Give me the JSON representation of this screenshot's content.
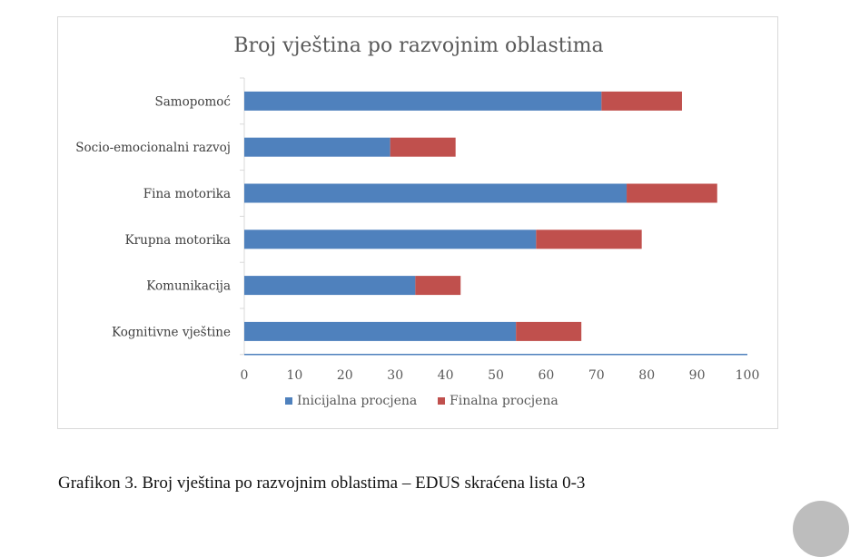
{
  "chart_data": {
    "type": "bar",
    "orientation": "horizontal",
    "stacked": true,
    "title": "Broj vještina po razvojnim oblastima",
    "categories": [
      "Samopomoć",
      "Socio-emocionalni razvoj",
      "Fina motorika",
      "Krupna motorika",
      "Komunikacija",
      "Kognitivne vještine"
    ],
    "series": [
      {
        "name": "Inicijalna procjena",
        "color": "#4f81bd",
        "values": [
          71,
          29,
          76,
          58,
          34,
          54
        ]
      },
      {
        "name": "Finalna procjena",
        "color": "#c0504d",
        "values": [
          16,
          13,
          18,
          21,
          9,
          13
        ]
      }
    ],
    "xlim": [
      0,
      100
    ],
    "xticks": [
      "0",
      "10",
      "20",
      "30",
      "40",
      "50",
      "60",
      "70",
      "80",
      "90",
      "100"
    ],
    "grid": false,
    "legend": "bottom"
  },
  "caption": "Grafikon 3. Broj vještina po razvojnim oblastima – EDUS skraćena lista 0-3"
}
